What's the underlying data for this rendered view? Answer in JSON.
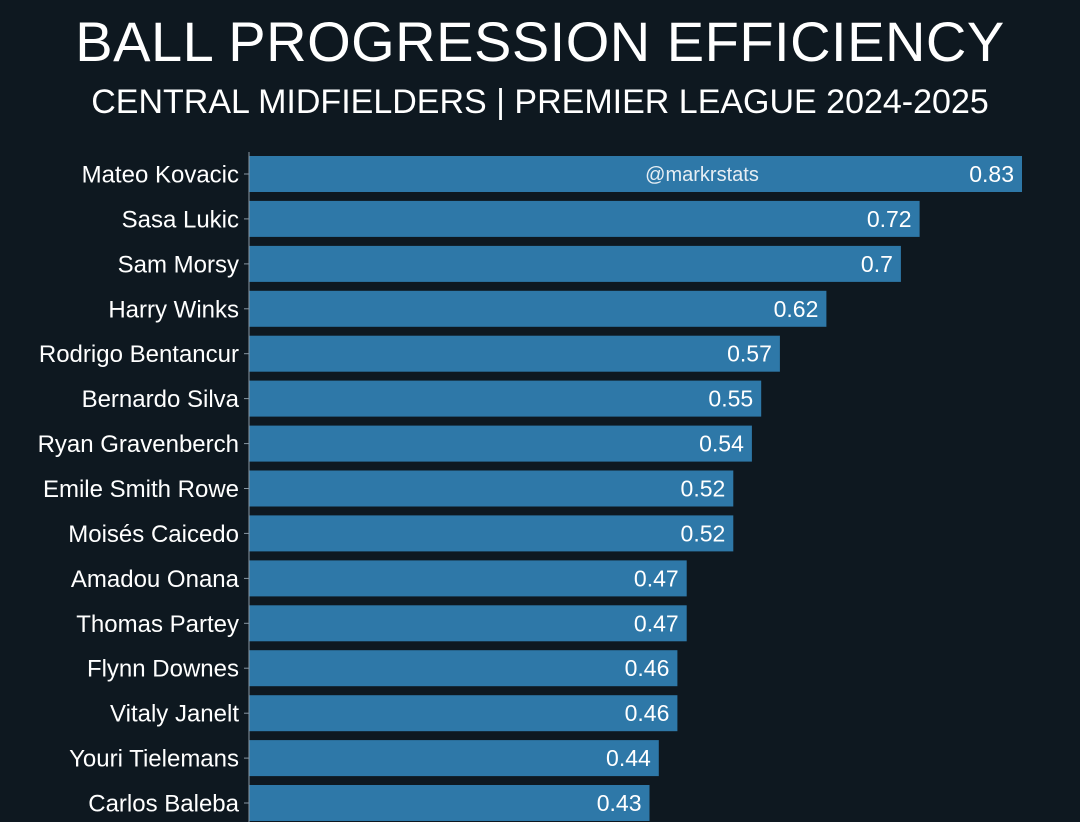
{
  "header": {
    "title": "BALL PROGRESSION EFFICIENCY",
    "subtitle": "CENTRAL MIDFIELDERS | PREMIER LEAGUE 2024-2025"
  },
  "watermark": "@markrstats",
  "colors": {
    "background": "#0e1820",
    "bar": "#2e78a8",
    "text": "#ffffff",
    "axis": "#8a97a3"
  },
  "chart_data": {
    "type": "bar",
    "orientation": "horizontal",
    "categories": [
      "Mateo Kovacic",
      "Sasa Lukic",
      "Sam Morsy",
      "Harry Winks",
      "Rodrigo Bentancur",
      "Bernardo Silva",
      "Ryan Gravenberch",
      "Emile Smith Rowe",
      "Moisés Caicedo",
      "Amadou Onana",
      "Thomas Partey",
      "Flynn Downes",
      "Vitaly Janelt",
      "Youri Tielemans",
      "Carlos Baleba"
    ],
    "values": [
      0.83,
      0.72,
      0.7,
      0.62,
      0.57,
      0.55,
      0.54,
      0.52,
      0.52,
      0.47,
      0.47,
      0.46,
      0.46,
      0.44,
      0.43
    ],
    "value_labels": [
      "0.83",
      "0.72",
      "0.7",
      "0.62",
      "0.57",
      "0.55",
      "0.54",
      "0.52",
      "0.52",
      "0.47",
      "0.47",
      "0.46",
      "0.46",
      "0.44",
      "0.43"
    ],
    "xlim": [
      0,
      0.85
    ],
    "grid": false,
    "legend": "none"
  }
}
